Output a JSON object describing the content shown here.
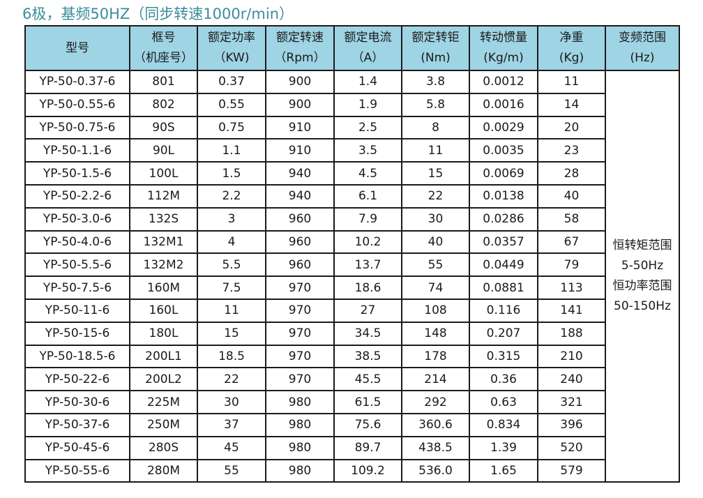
{
  "title": "6极，基频50HZ（同步转速1000r/min）",
  "header_color": "#9fd4e4",
  "title_color": "#3b8c9c",
  "headers": [
    {
      "l1": "型号",
      "l2": ""
    },
    {
      "l1": "框号",
      "l2": "（机座号）"
    },
    {
      "l1": "额定功率",
      "l2": "（KW)"
    },
    {
      "l1": "额定转速",
      "l2": "（Rpm）"
    },
    {
      "l1": "额定电流",
      "l2": "（A）"
    },
    {
      "l1": "额定转钜",
      "l2": "(Nm)"
    },
    {
      "l1": "转动惯量",
      "l2": "(Kg/m)"
    },
    {
      "l1": "净重",
      "l2": "(Kg)"
    },
    {
      "l1": "变频范围",
      "l2": "(Hz)"
    }
  ],
  "rows": [
    [
      "YP-50-0.37-6",
      "801",
      "0.37",
      "900",
      "1.4",
      "3.8",
      "0.0012",
      "11"
    ],
    [
      "YP-50-0.55-6",
      "802",
      "0.55",
      "900",
      "1.9",
      "5.8",
      "0.0016",
      "14"
    ],
    [
      "YP-50-0.75-6",
      "90S",
      "0.75",
      "910",
      "2.5",
      "8",
      "0.0029",
      "20"
    ],
    [
      "YP-50-1.1-6",
      "90L",
      "1.1",
      "910",
      "3.5",
      "11",
      "0.0035",
      "23"
    ],
    [
      "YP-50-1.5-6",
      "100L",
      "1.5",
      "940",
      "4.5",
      "15",
      "0.0069",
      "28"
    ],
    [
      "YP-50-2.2-6",
      "112M",
      "2.2",
      "940",
      "6.1",
      "22",
      "0.0138",
      "40"
    ],
    [
      "YP-50-3.0-6",
      "132S",
      "3",
      "960",
      "7.9",
      "30",
      "0.0286",
      "58"
    ],
    [
      "YP-50-4.0-6",
      "132M1",
      "4",
      "960",
      "10.2",
      "40",
      "0.0357",
      "67"
    ],
    [
      "YP-50-5.5-6",
      "132M2",
      "5.5",
      "960",
      "13.7",
      "55",
      "0.0449",
      "79"
    ],
    [
      "YP-50-7.5-6",
      "160M",
      "7.5",
      "970",
      "18.6",
      "74",
      "0.0881",
      "113"
    ],
    [
      "YP-50-11-6",
      "160L",
      "11",
      "970",
      "27",
      "108",
      "0.116",
      "141"
    ],
    [
      "YP-50-15-6",
      "180L",
      "15",
      "970",
      "34.5",
      "148",
      "0.207",
      "188"
    ],
    [
      "YP-50-18.5-6",
      "200L1",
      "18.5",
      "970",
      "38.5",
      "178",
      "0.315",
      "210"
    ],
    [
      "YP-50-22-6",
      "200L2",
      "22",
      "970",
      "45.5",
      "214",
      "0.36",
      "240"
    ],
    [
      "YP-50-30-6",
      "225M",
      "30",
      "980",
      "61.5",
      "292",
      "0.63",
      "321"
    ],
    [
      "YP-50-37-6",
      "250M",
      "37",
      "980",
      "75.6",
      "360.6",
      "0.834",
      "396"
    ],
    [
      "YP-50-45-6",
      "280S",
      "45",
      "980",
      "89.7",
      "438.5",
      "1.39",
      "520"
    ],
    [
      "YP-50-55-6",
      "280M",
      "55",
      "980",
      "109.2",
      "536.0",
      "1.65",
      "579"
    ]
  ],
  "freq_range": [
    "恒转矩范围",
    "5-50Hz",
    "恒功率范围",
    "50-150Hz"
  ]
}
